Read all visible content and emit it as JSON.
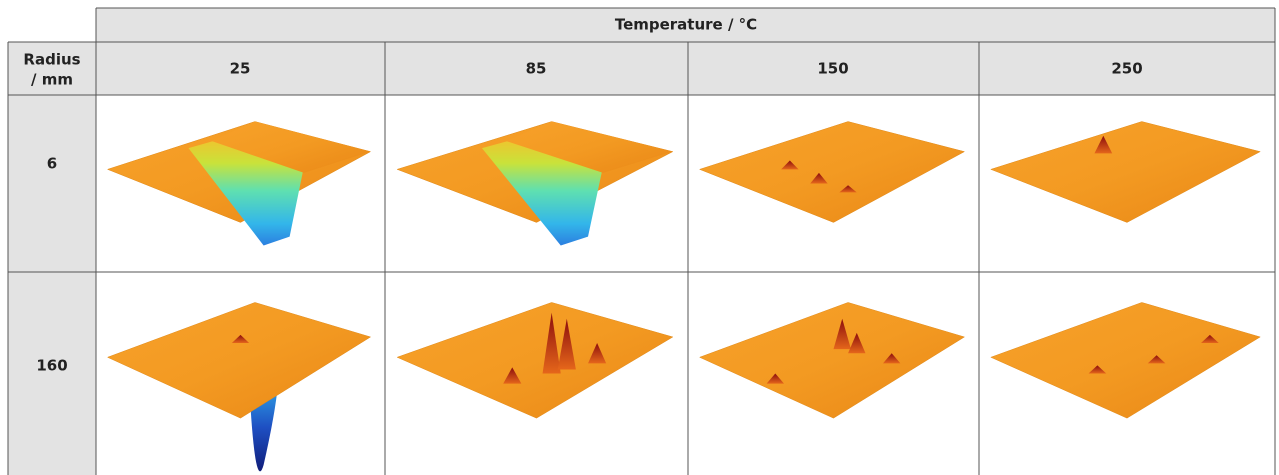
{
  "table": {
    "super_header": "Temperature / °C",
    "row_header_title": [
      "Radius",
      "/ mm"
    ],
    "columns": [
      "25",
      "85",
      "150",
      "250"
    ],
    "rows": [
      "6",
      "160"
    ]
  }
}
